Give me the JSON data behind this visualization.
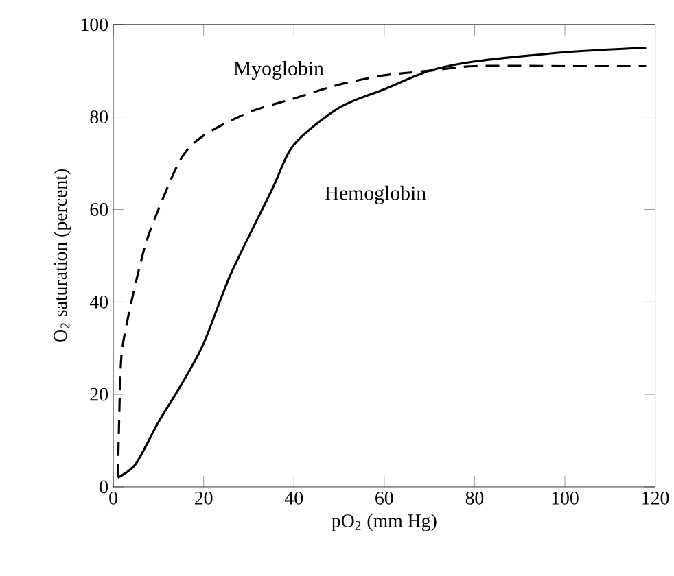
{
  "chart_data": {
    "type": "line",
    "xlabel": "pO$_{2}$ (mm Hg)",
    "ylabel": "O$_{2}$ saturation (percent)",
    "xlim": [
      0,
      120
    ],
    "ylim": [
      0,
      100
    ],
    "xticks": [
      0,
      20,
      40,
      60,
      80,
      100,
      120
    ],
    "yticks": [
      0,
      20,
      40,
      60,
      80,
      100
    ],
    "grid": false,
    "marker": "none",
    "series": [
      {
        "name": "Myoglobin",
        "color": "#000000",
        "line_style": "dashed",
        "x": [
          1,
          1.5,
          2,
          4,
          7,
          10,
          15,
          20,
          30,
          40,
          50,
          60,
          70,
          80,
          100,
          118
        ],
        "values": [
          2,
          22,
          30,
          40,
          52,
          60,
          71,
          76,
          81,
          84,
          87,
          89,
          90,
          91,
          91,
          91
        ]
      },
      {
        "name": "Hemoglobin",
        "color": "#000000",
        "line_style": "solid",
        "x": [
          1,
          5,
          10,
          15,
          20,
          26,
          35,
          40,
          50,
          60,
          70,
          80,
          100,
          118
        ],
        "values": [
          2,
          5,
          14,
          22,
          31,
          46,
          64,
          74,
          82,
          86,
          90,
          92,
          94,
          95
        ]
      }
    ]
  }
}
